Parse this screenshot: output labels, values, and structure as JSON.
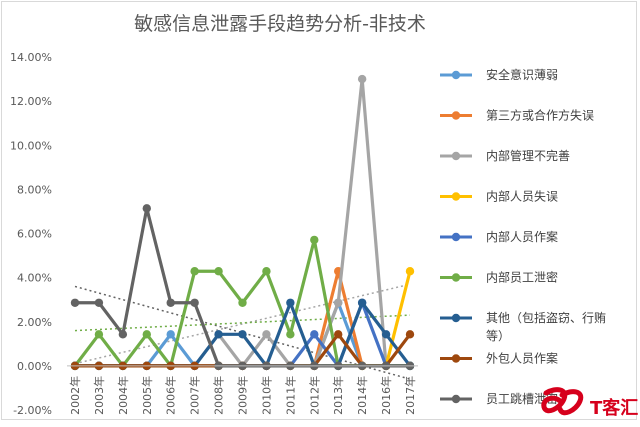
{
  "chart_data": {
    "type": "line",
    "title": "敏感信息泄露手段趋势分析-非技术",
    "categories": [
      "2002年",
      "2003年",
      "2004年",
      "2005年",
      "2006年",
      "2007年",
      "2008年",
      "2009年",
      "2010年",
      "2011年",
      "2012年",
      "2013年",
      "2014年",
      "2016年",
      "2017年"
    ],
    "ylim": [
      -0.02,
      0.14
    ],
    "yticks": [
      "-2.00%",
      "0.00%",
      "2.00%",
      "4.00%",
      "6.00%",
      "8.00%",
      "10.00%",
      "12.00%",
      "14.00%"
    ],
    "grid": false,
    "legend_position": "right",
    "series": [
      {
        "name": "安全意识薄弱",
        "color": "#5b9bd5",
        "values": [
          0,
          0,
          0,
          0,
          0.0143,
          0,
          0,
          0,
          0,
          0,
          0,
          0.0286,
          0,
          0,
          0
        ]
      },
      {
        "name": "第三方或合作方失误",
        "color": "#ed7d31",
        "values": [
          0,
          0,
          0,
          0,
          0,
          0,
          0,
          0,
          0,
          0,
          0,
          0.0429,
          0,
          0,
          0
        ]
      },
      {
        "name": "内部管理不完善",
        "color": "#a5a5a5",
        "values": [
          0,
          0,
          0,
          0,
          0,
          0,
          0.0143,
          0,
          0.0143,
          0,
          0,
          0.0286,
          0.13,
          0,
          0
        ]
      },
      {
        "name": "内部人员失误",
        "color": "#ffc000",
        "values": [
          0,
          0,
          0,
          0,
          0,
          0,
          0,
          0,
          0,
          0,
          0,
          0,
          0,
          0,
          0.0429
        ]
      },
      {
        "name": "内部人员作案",
        "color": "#4472c4",
        "values": [
          0,
          0,
          0,
          0,
          0,
          0,
          0,
          0,
          0,
          0,
          0.0143,
          0,
          0.0286,
          0,
          0
        ]
      },
      {
        "name": "内部员工泄密",
        "color": "#70ad47",
        "values": [
          0,
          0.0143,
          0,
          0.0143,
          0,
          0.0429,
          0.0429,
          0.0286,
          0.0429,
          0.0143,
          0.0571,
          0,
          0,
          0,
          0
        ]
      },
      {
        "name": "其他（包括盗窃、行贿等）",
        "color": "#255e91",
        "values": [
          0,
          0,
          0,
          0,
          0,
          0,
          0.0143,
          0.0143,
          0,
          0.0286,
          0,
          0,
          0.0286,
          0.0143,
          0
        ]
      },
      {
        "name": "外包人员作案",
        "color": "#9e480e",
        "values": [
          0,
          0,
          0,
          0,
          0,
          0,
          0,
          0,
          0,
          0,
          0,
          0.0143,
          0,
          0,
          0.0143
        ]
      },
      {
        "name": "员工跳槽泄密",
        "color": "#636363",
        "values": [
          0.0286,
          0.0286,
          0.0143,
          0.0714,
          0.0286,
          0.0286,
          0,
          0,
          0,
          0,
          0,
          0,
          0,
          0,
          0
        ]
      }
    ],
    "trendlines": [
      {
        "color": "#636363",
        "from": 0.036,
        "to": -0.006
      },
      {
        "color": "#a5a5a5",
        "from": 0.001,
        "to": 0.037
      },
      {
        "color": "#70ad47",
        "from": 0.016,
        "to": 0.023
      }
    ]
  },
  "watermark": {
    "text": "T客汇",
    "color": "#d6001c"
  }
}
